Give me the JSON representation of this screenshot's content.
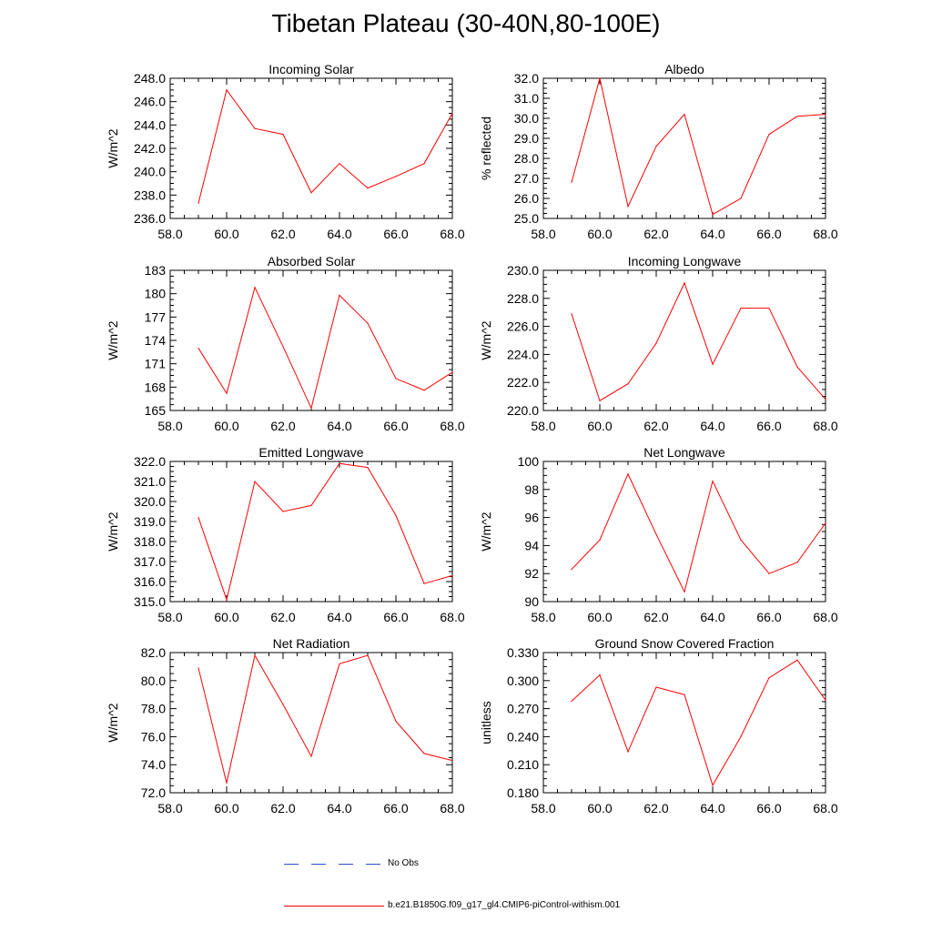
{
  "title": "Tibetan Plateau (30-40N,80-100E)",
  "colors": {
    "model": "#ff0000",
    "obs": "#2b50c8",
    "axis": "#000000"
  },
  "legend": [
    {
      "label": "No Obs",
      "style": "dashed",
      "color": "#2b50c8"
    },
    {
      "label": "b.e21.B1850G.f09_g17_gl4.CMIP6-piControl-withism.001",
      "style": "solid",
      "color": "#ff0000"
    }
  ],
  "chart_data": [
    {
      "type": "line",
      "title": "Incoming Solar",
      "ylabel": "W/m^2",
      "xlabel": "",
      "xlim": [
        58,
        68
      ],
      "ylim": [
        236,
        248
      ],
      "xticks": [
        "58.0",
        "60.0",
        "62.0",
        "64.0",
        "66.0",
        "68.0"
      ],
      "yticks": [
        "236.0",
        "238.0",
        "240.0",
        "242.0",
        "244.0",
        "246.0",
        "248.0"
      ],
      "x": [
        59,
        60,
        61,
        62,
        63,
        64,
        65,
        66,
        67,
        68
      ],
      "series": [
        {
          "values": [
            237.3,
            247.0,
            243.7,
            243.2,
            238.2,
            240.7,
            238.6,
            239.6,
            240.7,
            245.0
          ]
        }
      ]
    },
    {
      "type": "line",
      "title": "Albedo",
      "ylabel": "% reflected",
      "xlabel": "",
      "xlim": [
        58,
        68
      ],
      "ylim": [
        25,
        32
      ],
      "xticks": [
        "58.0",
        "60.0",
        "62.0",
        "64.0",
        "66.0",
        "68.0"
      ],
      "yticks": [
        "25.0",
        "26.0",
        "27.0",
        "28.0",
        "29.0",
        "30.0",
        "31.0",
        "32.0"
      ],
      "x": [
        59,
        60,
        61,
        62,
        63,
        64,
        65,
        66,
        67,
        68
      ],
      "series": [
        {
          "values": [
            26.8,
            32.0,
            25.6,
            28.6,
            30.2,
            25.2,
            26.0,
            29.2,
            30.1,
            30.2
          ]
        }
      ]
    },
    {
      "type": "line",
      "title": "Absorbed Solar",
      "ylabel": "W/m^2",
      "xlabel": "",
      "xlim": [
        58,
        68
      ],
      "ylim": [
        165,
        183
      ],
      "xticks": [
        "58.0",
        "60.0",
        "62.0",
        "64.0",
        "66.0",
        "68.0"
      ],
      "yticks": [
        "165",
        "168",
        "171",
        "174",
        "177",
        "180",
        "183"
      ],
      "x": [
        59,
        60,
        61,
        62,
        63,
        64,
        65,
        66,
        67,
        68
      ],
      "series": [
        {
          "values": [
            173.0,
            167.2,
            180.8,
            173.2,
            165.3,
            179.8,
            176.2,
            169.1,
            167.6,
            169.9
          ]
        }
      ]
    },
    {
      "type": "line",
      "title": "Incoming Longwave",
      "ylabel": "W/m^2",
      "xlabel": "",
      "xlim": [
        58,
        68
      ],
      "ylim": [
        220,
        230
      ],
      "xticks": [
        "58.0",
        "60.0",
        "62.0",
        "64.0",
        "66.0",
        "68.0"
      ],
      "yticks": [
        "220.0",
        "222.0",
        "224.0",
        "226.0",
        "228.0",
        "230.0"
      ],
      "x": [
        59,
        60,
        61,
        62,
        63,
        64,
        65,
        66,
        67,
        68
      ],
      "series": [
        {
          "values": [
            226.9,
            220.7,
            221.9,
            224.8,
            229.1,
            223.3,
            227.3,
            227.3,
            223.1,
            220.8
          ]
        }
      ]
    },
    {
      "type": "line",
      "title": "Emitted Longwave",
      "ylabel": "W/m^2",
      "xlabel": "",
      "xlim": [
        58,
        68
      ],
      "ylim": [
        315,
        322
      ],
      "xticks": [
        "58.0",
        "60.0",
        "62.0",
        "64.0",
        "66.0",
        "68.0"
      ],
      "yticks": [
        "315.0",
        "316.0",
        "317.0",
        "318.0",
        "319.0",
        "320.0",
        "321.0",
        "322.0"
      ],
      "x": [
        59,
        60,
        61,
        62,
        63,
        64,
        65,
        66,
        67,
        68
      ],
      "series": [
        {
          "values": [
            319.2,
            315.1,
            321.0,
            319.5,
            319.8,
            321.9,
            321.7,
            319.3,
            315.9,
            316.3
          ]
        }
      ]
    },
    {
      "type": "line",
      "title": "Net Longwave",
      "ylabel": "W/m^2",
      "xlabel": "",
      "xlim": [
        58,
        68
      ],
      "ylim": [
        90,
        100
      ],
      "xticks": [
        "58.0",
        "60.0",
        "62.0",
        "64.0",
        "66.0",
        "68.0"
      ],
      "yticks": [
        "90",
        "92",
        "94",
        "96",
        "98",
        "100"
      ],
      "x": [
        59,
        60,
        61,
        62,
        63,
        64,
        65,
        66,
        67,
        68
      ],
      "series": [
        {
          "values": [
            92.3,
            94.4,
            99.1,
            94.8,
            90.7,
            98.6,
            94.4,
            92.0,
            92.8,
            95.6
          ]
        }
      ]
    },
    {
      "type": "line",
      "title": "Net Radiation",
      "ylabel": "W/m^2",
      "xlabel": "",
      "xlim": [
        58,
        68
      ],
      "ylim": [
        72,
        82
      ],
      "xticks": [
        "58.0",
        "60.0",
        "62.0",
        "64.0",
        "66.0",
        "68.0"
      ],
      "yticks": [
        "72.0",
        "74.0",
        "76.0",
        "78.0",
        "80.0",
        "82.0"
      ],
      "x": [
        59,
        60,
        61,
        62,
        63,
        64,
        65,
        66,
        67,
        68
      ],
      "series": [
        {
          "values": [
            80.9,
            72.7,
            81.8,
            78.3,
            74.6,
            81.2,
            81.8,
            77.1,
            74.8,
            74.3
          ]
        }
      ]
    },
    {
      "type": "line",
      "title": "Ground Snow Covered Fraction",
      "ylabel": "unitless",
      "xlabel": "",
      "xlim": [
        58,
        68
      ],
      "ylim": [
        0.18,
        0.33
      ],
      "xticks": [
        "58.0",
        "60.0",
        "62.0",
        "64.0",
        "66.0",
        "68.0"
      ],
      "yticks": [
        "0.180",
        "0.210",
        "0.240",
        "0.270",
        "0.300",
        "0.330"
      ],
      "x": [
        59,
        60,
        61,
        62,
        63,
        64,
        65,
        66,
        67,
        68
      ],
      "series": [
        {
          "values": [
            0.278,
            0.306,
            0.224,
            0.293,
            0.285,
            0.188,
            0.24,
            0.303,
            0.322,
            0.279
          ]
        }
      ]
    }
  ]
}
